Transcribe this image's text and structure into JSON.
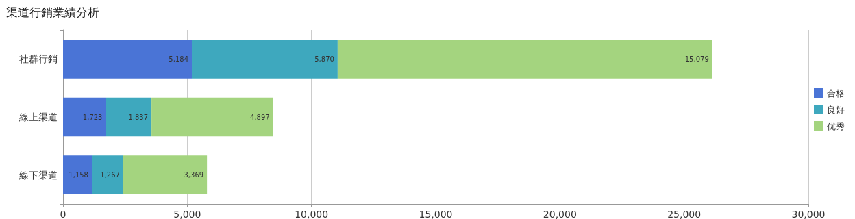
{
  "chart_data": {
    "type": "bar",
    "title": "渠道行銷業績分析",
    "orientation": "horizontal",
    "stacked": true,
    "categories": [
      "社群行銷",
      "線上渠道",
      "線下渠道"
    ],
    "series": [
      {
        "name": "合格",
        "color": "#4a74d6",
        "values": [
          5184,
          1723,
          1158
        ],
        "value_labels": [
          "5,184",
          "1,723",
          "1,158"
        ]
      },
      {
        "name": "良好",
        "color": "#3ea8be",
        "values": [
          5870,
          1837,
          1267
        ],
        "value_labels": [
          "5,870",
          "1,837",
          "1,267"
        ]
      },
      {
        "name": "优秀",
        "color": "#a4d47f",
        "values": [
          15079,
          4897,
          3369
        ],
        "value_labels": [
          "15,079",
          "4,897",
          "3,369"
        ]
      }
    ],
    "xlim": [
      0,
      30000
    ],
    "xticks": [
      0,
      {
        "value": 5000,
        "label": "5,000"
      },
      {
        "value": 10000,
        "label": "10,000"
      },
      {
        "value": 15000,
        "label": "15,000"
      },
      {
        "value": 20000,
        "label": "20,000"
      },
      {
        "value": 25000,
        "label": "25,000"
      },
      {
        "value": 30000,
        "label": "30,000"
      }
    ],
    "grid": "x",
    "legend": "right"
  }
}
